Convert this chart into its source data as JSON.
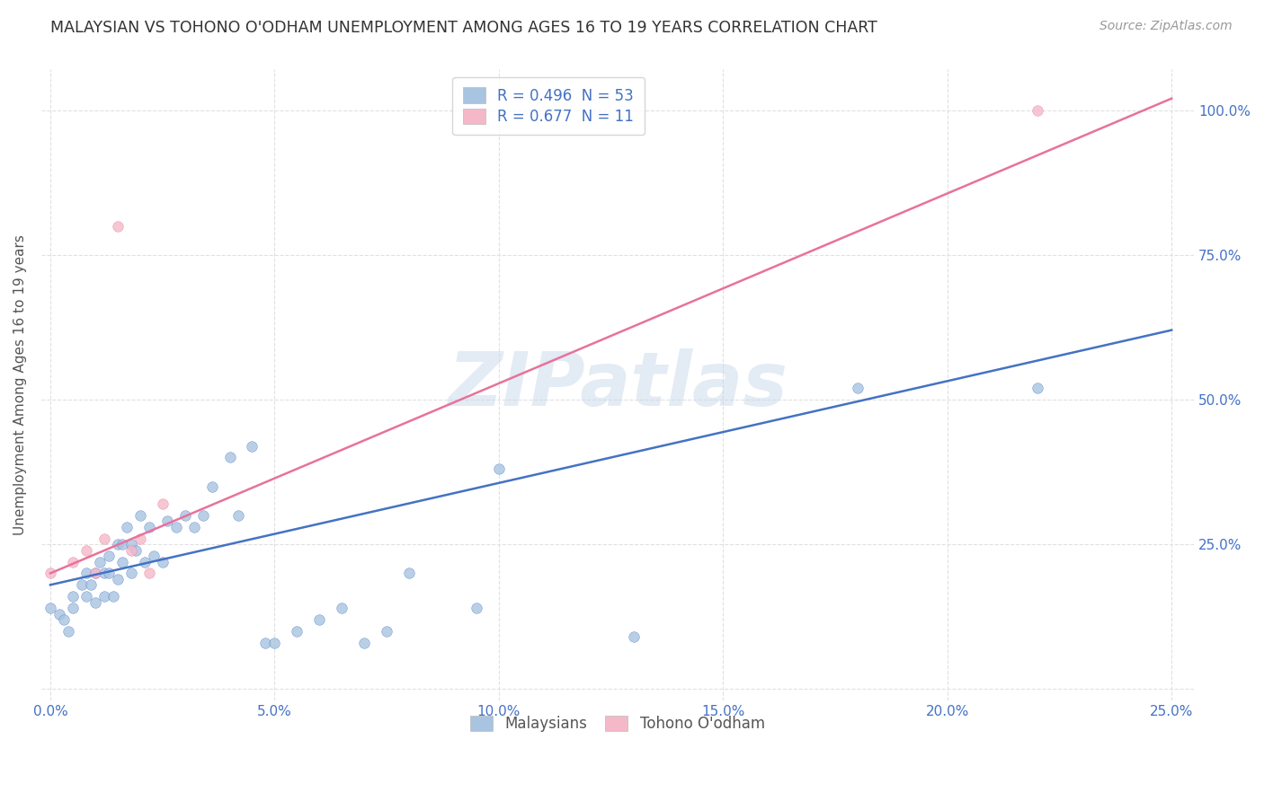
{
  "title": "MALAYSIAN VS TOHONO O'ODHAM UNEMPLOYMENT AMONG AGES 16 TO 19 YEARS CORRELATION CHART",
  "source": "Source: ZipAtlas.com",
  "xlabel_ticks": [
    "0.0%",
    "5.0%",
    "10.0%",
    "15.0%",
    "20.0%",
    "25.0%"
  ],
  "xlabel_vals": [
    0.0,
    0.05,
    0.1,
    0.15,
    0.2,
    0.25
  ],
  "ylabel_ticks_right": [
    "100.0%",
    "75.0%",
    "50.0%",
    "25.0%"
  ],
  "ylabel_vals": [
    0.0,
    0.25,
    0.5,
    0.75,
    1.0
  ],
  "ylabel_vals_right": [
    1.0,
    0.75,
    0.5,
    0.25
  ],
  "ylabel_label": "Unemployment Among Ages 16 to 19 years",
  "xlim": [
    -0.002,
    0.255
  ],
  "ylim": [
    -0.02,
    1.07
  ],
  "malaysian_color": "#a8c4e0",
  "tohono_color": "#f4b8c8",
  "malaysian_line_color": "#4472c4",
  "tohono_line_color": "#e8729a",
  "legend_r_malaysian": "R = 0.496",
  "legend_n_malaysian": "N = 53",
  "legend_r_tohono": "R = 0.677",
  "legend_n_tohono": "N = 11",
  "malaysian_scatter_x": [
    0.0,
    0.002,
    0.003,
    0.004,
    0.005,
    0.005,
    0.007,
    0.008,
    0.008,
    0.009,
    0.01,
    0.01,
    0.011,
    0.012,
    0.012,
    0.013,
    0.013,
    0.014,
    0.015,
    0.015,
    0.016,
    0.016,
    0.017,
    0.018,
    0.018,
    0.019,
    0.02,
    0.021,
    0.022,
    0.023,
    0.025,
    0.026,
    0.028,
    0.03,
    0.032,
    0.034,
    0.036,
    0.04,
    0.042,
    0.045,
    0.048,
    0.05,
    0.055,
    0.06,
    0.065,
    0.07,
    0.075,
    0.08,
    0.095,
    0.1,
    0.13,
    0.18,
    0.22
  ],
  "malaysian_scatter_y": [
    0.14,
    0.13,
    0.12,
    0.1,
    0.16,
    0.14,
    0.18,
    0.2,
    0.16,
    0.18,
    0.2,
    0.15,
    0.22,
    0.2,
    0.16,
    0.23,
    0.2,
    0.16,
    0.25,
    0.19,
    0.25,
    0.22,
    0.28,
    0.25,
    0.2,
    0.24,
    0.3,
    0.22,
    0.28,
    0.23,
    0.22,
    0.29,
    0.28,
    0.3,
    0.28,
    0.3,
    0.35,
    0.4,
    0.3,
    0.42,
    0.08,
    0.08,
    0.1,
    0.12,
    0.14,
    0.08,
    0.1,
    0.2,
    0.14,
    0.38,
    0.09,
    0.52,
    0.52
  ],
  "tohono_scatter_x": [
    0.0,
    0.005,
    0.008,
    0.01,
    0.012,
    0.015,
    0.018,
    0.02,
    0.022,
    0.025,
    0.22
  ],
  "tohono_scatter_y": [
    0.2,
    0.22,
    0.24,
    0.2,
    0.26,
    0.8,
    0.24,
    0.26,
    0.2,
    0.32,
    1.0
  ],
  "malaysian_line_x": [
    0.0,
    0.25
  ],
  "malaysian_line_y": [
    0.18,
    0.62
  ],
  "tohono_line_x": [
    0.0,
    0.25
  ],
  "tohono_line_y": [
    0.2,
    1.02
  ],
  "watermark": "ZIPatlas",
  "background_color": "#ffffff",
  "grid_color": "#e0e0e0",
  "grid_style": "--"
}
